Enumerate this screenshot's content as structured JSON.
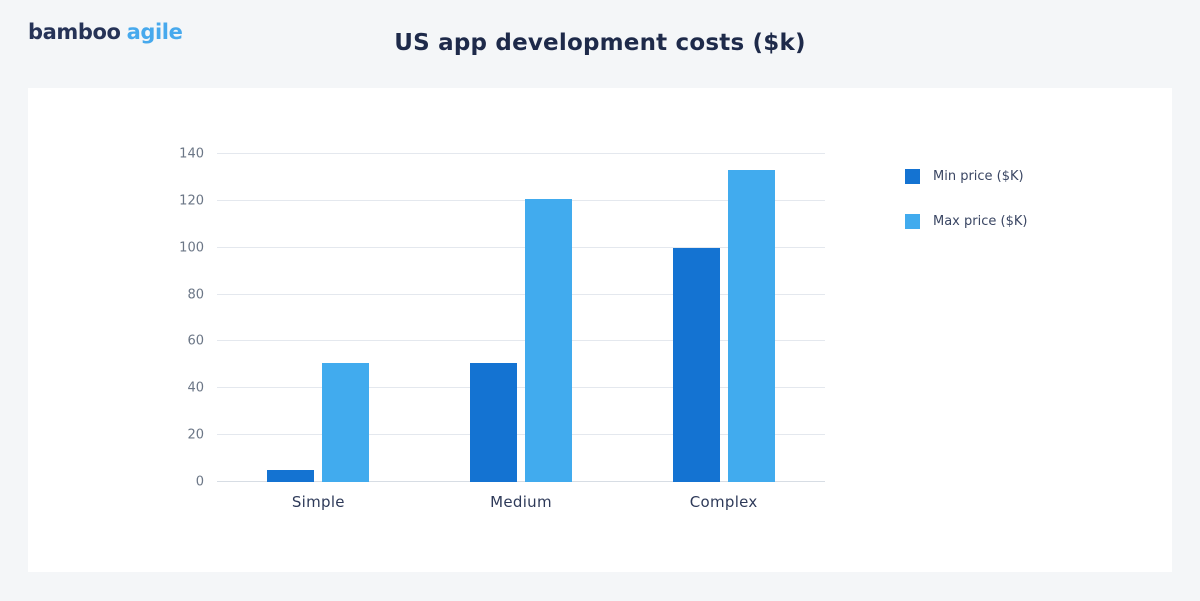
{
  "brand": {
    "logo_part1": "bamboo",
    "logo_part2": "agile",
    "part1_color": "#263357",
    "part2_color": "#47a9ed"
  },
  "header": {
    "title": "US app development costs ($k)"
  },
  "chart_data": {
    "type": "bar",
    "title": "US app development costs ($k)",
    "categories": [
      "Simple",
      "Medium",
      "Complex"
    ],
    "series": [
      {
        "name": "Min price ($K)",
        "color": "#1473d2",
        "values": [
          5,
          51,
          100
        ]
      },
      {
        "name": "Max price ($K)",
        "color": "#41abee",
        "values": [
          51,
          121,
          133
        ]
      }
    ],
    "xlabel": "",
    "ylabel": "",
    "ylim": [
      0,
      140
    ],
    "yticks": [
      0,
      20,
      40,
      60,
      80,
      100,
      120,
      140
    ],
    "grid": true,
    "legend_position": "right"
  },
  "colors": {
    "page_background": "#f4f6f8",
    "card_background": "#ffffff",
    "gridline": "#e4e8ee",
    "tick_text": "#6b7686",
    "category_text": "#2e3a59",
    "title_text": "#1e2a4a"
  }
}
